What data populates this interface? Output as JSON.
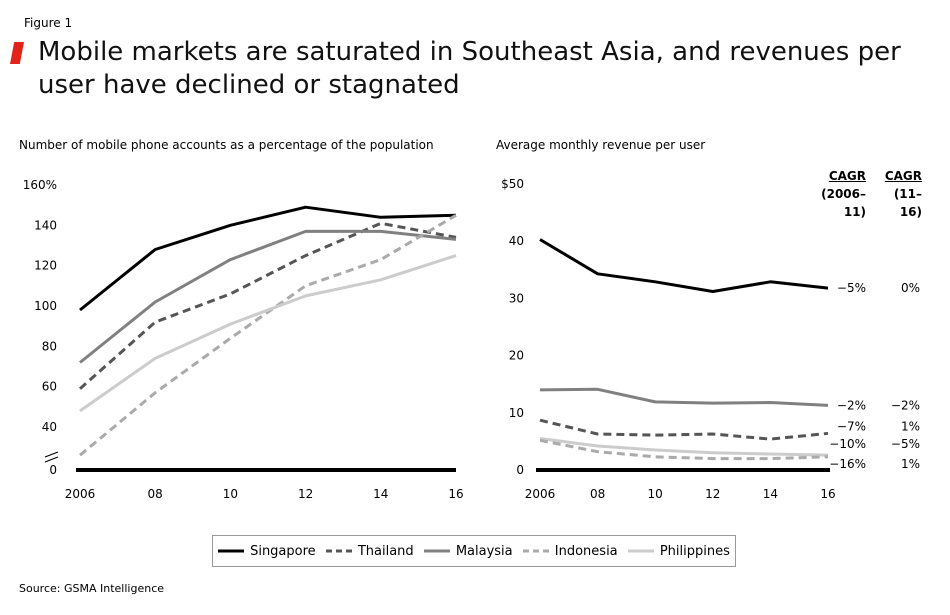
{
  "figure_label": "Figure 1",
  "title": "Mobile markets are saturated in Southeast Asia, and revenues per user have declined or stagnated",
  "source": "Source: GSMA Intelligence",
  "colors": {
    "accent": "#e2231a"
  },
  "cagr_headers": {
    "col1": [
      "CAGR",
      "(2006–11)"
    ],
    "col2": [
      "CAGR",
      "(11–16)"
    ]
  },
  "legend": [
    {
      "name": "Singapore",
      "color": "#000000",
      "dash": "solid"
    },
    {
      "name": "Thailand",
      "color": "#555555",
      "dash": "dashed"
    },
    {
      "name": "Malaysia",
      "color": "#808080",
      "dash": "solid"
    },
    {
      "name": "Indonesia",
      "color": "#aaaaaa",
      "dash": "dashed"
    },
    {
      "name": "Philippines",
      "color": "#cccccc",
      "dash": "solid"
    }
  ],
  "chart_data": [
    {
      "type": "line",
      "title": "Number of mobile phone accounts as a percentage of the population",
      "x": [
        2006,
        2008,
        2010,
        2012,
        2014,
        2016
      ],
      "x_tick_labels": [
        "2006",
        "08",
        "10",
        "12",
        "14",
        "16"
      ],
      "y_tick_labels": [
        "0",
        "40",
        "60",
        "80",
        "100",
        "120",
        "140",
        "160%"
      ],
      "y_ticks": [
        0,
        40,
        60,
        80,
        100,
        120,
        140,
        160
      ],
      "ylim": [
        0,
        160
      ],
      "axis_break": true,
      "series": [
        {
          "name": "Singapore",
          "values": [
            98,
            128,
            140,
            149,
            144,
            145
          ]
        },
        {
          "name": "Thailand",
          "values": [
            59,
            92,
            106,
            125,
            141,
            134
          ]
        },
        {
          "name": "Malaysia",
          "values": [
            72,
            102,
            123,
            137,
            137,
            133
          ]
        },
        {
          "name": "Indonesia",
          "values": [
            26,
            57,
            84,
            110,
            123,
            145
          ]
        },
        {
          "name": "Philippines",
          "values": [
            48,
            74,
            91,
            105,
            113,
            125
          ]
        }
      ]
    },
    {
      "type": "line",
      "title": "Average monthly revenue per user",
      "x": [
        2006,
        2008,
        2010,
        2012,
        2014,
        2016
      ],
      "x_tick_labels": [
        "2006",
        "08",
        "10",
        "12",
        "14",
        "16"
      ],
      "y_tick_labels": [
        "0",
        "10",
        "20",
        "30",
        "40",
        "$50"
      ],
      "y_ticks": [
        0,
        10,
        20,
        30,
        40,
        50
      ],
      "ylim": [
        0,
        50
      ],
      "series": [
        {
          "name": "Singapore",
          "values": [
            40.3,
            34.3,
            32.9,
            31.2,
            32.9,
            31.8
          ],
          "cagr_2006_11": "−5%",
          "cagr_11_16": "0%"
        },
        {
          "name": "Thailand",
          "values": [
            8.7,
            6.3,
            6.1,
            6.3,
            5.4,
            6.4
          ],
          "cagr_2006_11": "−7%",
          "cagr_11_16": "1%"
        },
        {
          "name": "Malaysia",
          "values": [
            14.0,
            14.1,
            11.9,
            11.7,
            11.8,
            11.3
          ],
          "cagr_2006_11": "−2%",
          "cagr_11_16": "−2%"
        },
        {
          "name": "Indonesia",
          "values": [
            5.2,
            3.2,
            2.3,
            2.0,
            2.0,
            2.3
          ],
          "cagr_2006_11": "−16%",
          "cagr_11_16": "1%"
        },
        {
          "name": "Philippines",
          "values": [
            5.5,
            4.2,
            3.5,
            3.0,
            2.8,
            2.6
          ],
          "cagr_2006_11": "−10%",
          "cagr_11_16": "−5%"
        }
      ]
    }
  ]
}
